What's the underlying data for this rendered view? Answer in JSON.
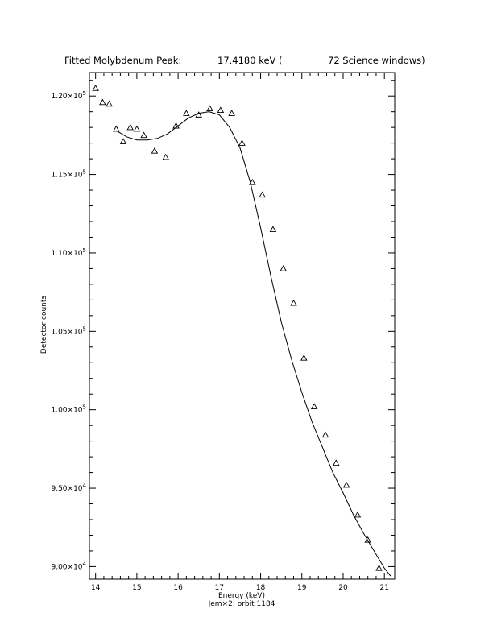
{
  "chart_data": {
    "type": "scatter",
    "title": {
      "left": "Fitted Molybdenum Peak:",
      "mid": "17.4180 keV (",
      "right": "72 Science windows)"
    },
    "xlabel": "Energy (keV)",
    "ylabel": "Detector counts",
    "footer": "Jem×2: orbit 1184",
    "xlim": [
      13.85,
      21.25
    ],
    "ylim": [
      89200,
      121500
    ],
    "x_ticks": [
      {
        "value": 14,
        "label": "14"
      },
      {
        "value": 15,
        "label": "15"
      },
      {
        "value": 16,
        "label": "16"
      },
      {
        "value": 17,
        "label": "17"
      },
      {
        "value": 18,
        "label": "18"
      },
      {
        "value": 19,
        "label": "19"
      },
      {
        "value": 20,
        "label": "20"
      },
      {
        "value": 21,
        "label": "21"
      }
    ],
    "y_ticks": [
      {
        "value": 90000,
        "mant": "9.00×10",
        "exp": "4"
      },
      {
        "value": 95000,
        "mant": "9.50×10",
        "exp": "4"
      },
      {
        "value": 100000,
        "mant": "1.00×10",
        "exp": "5"
      },
      {
        "value": 105000,
        "mant": "1.05×10",
        "exp": "5"
      },
      {
        "value": 110000,
        "mant": "1.10×10",
        "exp": "5"
      },
      {
        "value": 115000,
        "mant": "1.15×10",
        "exp": "5"
      },
      {
        "value": 120000,
        "mant": "1.20×10",
        "exp": "5"
      }
    ],
    "grid": false,
    "legend": "none",
    "series": [
      {
        "marker": "triangle",
        "x": [
          14.0,
          14.17,
          14.33,
          14.5,
          14.67,
          14.84,
          15.0,
          15.17,
          15.43,
          15.7,
          15.95,
          16.2,
          16.5,
          16.77,
          17.03,
          17.3,
          17.55,
          17.8,
          18.04,
          18.3,
          18.55,
          18.8,
          19.05,
          19.3,
          19.57,
          19.83,
          20.08,
          20.35,
          20.6,
          20.87
        ],
        "y": [
          120500,
          119600,
          119500,
          117900,
          117100,
          118000,
          117900,
          117500,
          116500,
          116100,
          118100,
          118900,
          118800,
          119200,
          119100,
          118900,
          117000,
          114500,
          113700,
          111500,
          109000,
          106800,
          103300,
          100200,
          98400,
          96600,
          95200,
          93300,
          91700,
          89900
        ]
      },
      {
        "style": "line",
        "x": [
          14.5,
          14.75,
          15.0,
          15.25,
          15.5,
          15.75,
          16.0,
          16.25,
          16.5,
          16.75,
          17.0,
          17.25,
          17.5,
          17.75,
          18.0,
          18.25,
          18.5,
          18.75,
          19.0,
          19.25,
          19.5,
          19.75,
          20.0,
          20.25,
          20.5,
          20.75,
          21.0,
          21.15
        ],
        "y": [
          117800,
          117400,
          117200,
          117200,
          117300,
          117600,
          118100,
          118600,
          118900,
          119000,
          118800,
          118000,
          116700,
          114500,
          111600,
          108500,
          105600,
          103200,
          101100,
          99200,
          97600,
          96000,
          94700,
          93300,
          92100,
          91000,
          89900,
          89400
        ]
      }
    ]
  }
}
